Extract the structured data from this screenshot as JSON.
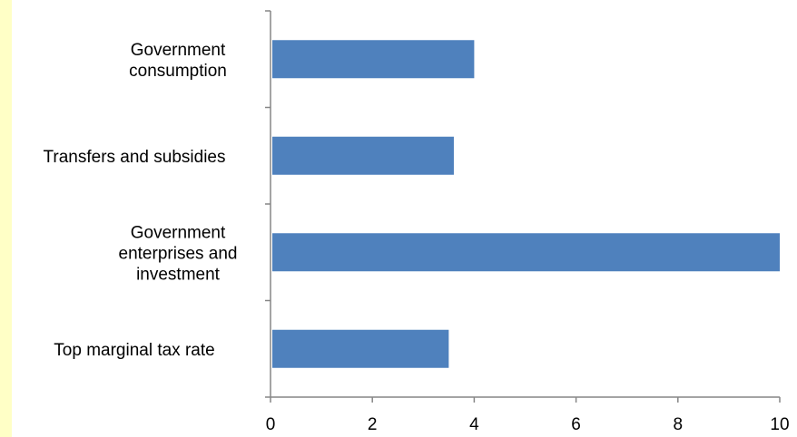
{
  "colors": {
    "bar": "#4f81bd",
    "axis": "#868686",
    "left_strip": "#ffffc6"
  },
  "chart_data": {
    "type": "bar",
    "orientation": "horizontal",
    "categories": [
      "Government consumption",
      "Transfers and subsidies",
      "Government enterprises and investment",
      "Top marginal tax rate"
    ],
    "category_lines": [
      [
        "Government",
        "consumption"
      ],
      [
        "Transfers and subsidies"
      ],
      [
        "Government",
        "enterprises and",
        "investment"
      ],
      [
        "Top marginal tax rate"
      ]
    ],
    "values": [
      4.0,
      3.6,
      10.0,
      3.5
    ],
    "xlim": [
      0,
      10
    ],
    "xticks": [
      "0",
      "2",
      "4",
      "6",
      "8",
      "10"
    ],
    "grid": false,
    "legend": "none",
    "title": "",
    "xlabel": "",
    "ylabel": ""
  }
}
